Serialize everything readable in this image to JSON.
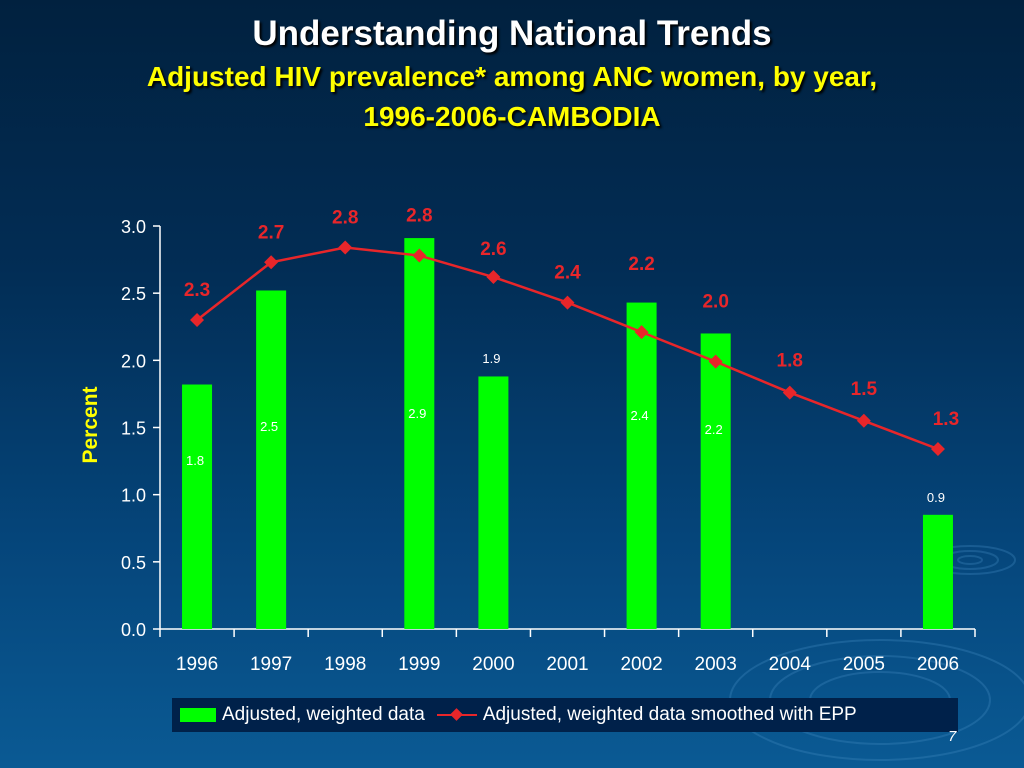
{
  "slide": {
    "title": "Understanding National Trends",
    "subtitle_line1": "Adjusted HIV prevalence* among ANC women, by year,",
    "subtitle_line2": "1996-2006-CAMBODIA",
    "page_number": "7"
  },
  "colors": {
    "bar": "#00ff00",
    "line": "#e8262a",
    "title": "#ffffff",
    "subtitle": "#ffff00",
    "axis_label": "#ffff00"
  },
  "chart_data": {
    "type": "bar",
    "title": "",
    "xlabel": "",
    "ylabel": "Percent",
    "ylim": [
      0,
      3.0
    ],
    "yticks": [
      "0.0",
      "0.5",
      "1.0",
      "1.5",
      "2.0",
      "2.5",
      "3.0"
    ],
    "categories": [
      "1996",
      "1997",
      "1998",
      "1999",
      "2000",
      "2001",
      "2002",
      "2003",
      "2004",
      "2005",
      "2006"
    ],
    "grid": false,
    "legend_position": "bottom",
    "series": [
      {
        "name": "Adjusted, weighted data",
        "type": "bar",
        "values": [
          1.82,
          2.52,
          null,
          2.91,
          1.88,
          null,
          2.43,
          2.2,
          null,
          null,
          0.85
        ],
        "labels": [
          "1.8",
          "2.5",
          "",
          "2.9",
          "1.9",
          "",
          "2.4",
          "2.2",
          "",
          "",
          "0.9"
        ]
      },
      {
        "name": "Adjusted, weighted data smoothed with EPP",
        "type": "line",
        "values": [
          2.3,
          2.73,
          2.84,
          2.78,
          2.62,
          2.43,
          2.21,
          1.99,
          1.76,
          1.55,
          1.34
        ],
        "labels": [
          "2.3",
          "2.7",
          "2.8",
          "2.8",
          "2.6",
          "2.4",
          "2.2",
          "2.0",
          "1.8",
          "1.5",
          "1.3"
        ]
      }
    ]
  }
}
